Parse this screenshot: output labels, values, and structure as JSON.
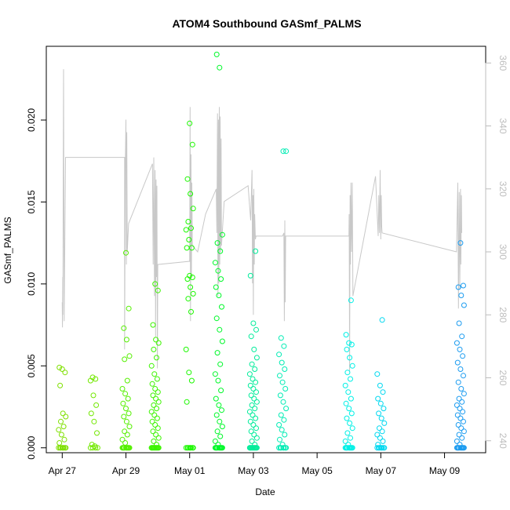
{
  "chart_data": {
    "type": "scatter",
    "title": "ATOM4 Southbound GASmf_PALMS",
    "xlabel": "Date",
    "ylabel": "GASmf_PALMS",
    "xlim": [
      "2018-04-26T12:00",
      "2018-05-10T07:00"
    ],
    "ylim": [
      -0.0003,
      0.0245
    ],
    "y2lim": [
      236.2,
      365.3
    ],
    "x_ticks": [
      {
        "date": "2018-04-27",
        "label": "Apr 27"
      },
      {
        "date": "2018-04-29",
        "label": "Apr 29"
      },
      {
        "date": "2018-05-01",
        "label": "May 01"
      },
      {
        "date": "2018-05-03",
        "label": "May 03"
      },
      {
        "date": "2018-05-05",
        "label": "May 05"
      },
      {
        "date": "2018-05-07",
        "label": "May 07"
      },
      {
        "date": "2018-05-09",
        "label": "May 09"
      }
    ],
    "y_ticks": [
      {
        "value": 0.0,
        "label": "0.000"
      },
      {
        "value": 0.005,
        "label": "0.005"
      },
      {
        "value": 0.01,
        "label": "0.010"
      },
      {
        "value": 0.015,
        "label": "0.015"
      },
      {
        "value": 0.02,
        "label": "0.020"
      }
    ],
    "y2_ticks": [
      {
        "value": 240,
        "label": "240"
      },
      {
        "value": 260,
        "label": "260"
      },
      {
        "value": 280,
        "label": "280"
      },
      {
        "value": 300,
        "label": "300"
      },
      {
        "value": 320,
        "label": "320"
      },
      {
        "value": 340,
        "label": "340"
      },
      {
        "value": 360,
        "label": "360"
      }
    ],
    "grid": false,
    "legend": "none",
    "colors": {
      "secondary_line": "#c8c8c8",
      "frame": "#000000",
      "right_axis": "#bdbdbd"
    },
    "flights": [
      {
        "center": "2018-04-27T00:00",
        "color": "#7fe000",
        "values": [
          0,
          0,
          0,
          0,
          0,
          0,
          0,
          0,
          0.0003,
          0.0005,
          0.0008,
          0.0011,
          0.0013,
          0.0016,
          0.0019,
          0.0021,
          0.0038,
          0.0046,
          0.0048,
          0.0049
        ]
      },
      {
        "center": "2018-04-28T00:00",
        "color": "#72e800",
        "values": [
          0,
          0,
          0,
          0,
          0.0001,
          0.0002,
          0.0009,
          0.0016,
          0.0021,
          0.0026,
          0.0032,
          0.0041,
          0.0042,
          0.0043
        ]
      },
      {
        "center": "2018-04-29T00:00",
        "color": "#55f000",
        "values": [
          0,
          0,
          0,
          0,
          0,
          0,
          0,
          0,
          0,
          0,
          0.0003,
          0.0005,
          0.0008,
          0.001,
          0.0013,
          0.0016,
          0.0019,
          0.0021,
          0.0024,
          0.0027,
          0.003,
          0.0033,
          0.0036,
          0.0041,
          0.0054,
          0.0056,
          0.0066,
          0.0073,
          0.0085,
          0.0119
        ]
      },
      {
        "center": "2018-04-29T22:00",
        "color": "#3cf400",
        "values": [
          0,
          0,
          0,
          0,
          0,
          0,
          0,
          0,
          0,
          0,
          0,
          0,
          0.0002,
          0.0004,
          0.0006,
          0.0008,
          0.001,
          0.0012,
          0.0014,
          0.0016,
          0.0018,
          0.002,
          0.0022,
          0.0024,
          0.0026,
          0.0028,
          0.003,
          0.0032,
          0.0034,
          0.0036,
          0.0039,
          0.0042,
          0.0045,
          0.005,
          0.0055,
          0.006,
          0.0064,
          0.0066,
          0.0075,
          0.0096,
          0.01
        ]
      },
      {
        "center": "2018-05-01T00:00",
        "color": "#1cf800",
        "values": [
          0,
          0,
          0,
          0,
          0,
          0,
          0,
          0,
          0.0028,
          0.0041,
          0.0046,
          0.006,
          0.0083,
          0.0091,
          0.0094,
          0.0098,
          0.0103,
          0.0104,
          0.0105,
          0.0122,
          0.0122,
          0.0127,
          0.0133,
          0.0134,
          0.0138,
          0.0146,
          0.0155,
          0.0164,
          0.0185,
          0.0198
        ]
      },
      {
        "center": "2018-05-01T22:00",
        "color": "#00f82a",
        "values": [
          0,
          0,
          0,
          0,
          0,
          0,
          0,
          0,
          0,
          0,
          0.0002,
          0.0004,
          0.0007,
          0.001,
          0.0013,
          0.0016,
          0.002,
          0.0023,
          0.0026,
          0.003,
          0.0035,
          0.0041,
          0.0045,
          0.0051,
          0.0058,
          0.0065,
          0.0072,
          0.0079,
          0.0086,
          0.0093,
          0.0098,
          0.0103,
          0.0108,
          0.0113,
          0.012,
          0.0125,
          0.013,
          0.0232,
          0.024
        ]
      },
      {
        "center": "2018-05-03T00:00",
        "color": "#00ec9a",
        "values": [
          0,
          0,
          0,
          0,
          0,
          0,
          0,
          0,
          0,
          0,
          0,
          0,
          0.0002,
          0.0004,
          0.0006,
          0.0008,
          0.001,
          0.0012,
          0.0014,
          0.0016,
          0.0018,
          0.002,
          0.0022,
          0.0024,
          0.0026,
          0.0028,
          0.003,
          0.0032,
          0.0034,
          0.0036,
          0.0038,
          0.004,
          0.0042,
          0.0045,
          0.0048,
          0.0051,
          0.0055,
          0.006,
          0.0068,
          0.0072,
          0.0076,
          0.0105,
          0.012
        ]
      },
      {
        "center": "2018-05-03T22:00",
        "color": "#00ecb4",
        "values": [
          0,
          0,
          0,
          0,
          0,
          0,
          0,
          0.0002,
          0.0005,
          0.0008,
          0.0011,
          0.0014,
          0.0017,
          0.002,
          0.0024,
          0.0028,
          0.0032,
          0.0036,
          0.004,
          0.0044,
          0.0048,
          0.0052,
          0.0057,
          0.0062,
          0.0067,
          0.0181,
          0.0181
        ]
      },
      {
        "center": "2018-05-06T00:00",
        "color": "#00f0e6",
        "values": [
          0,
          0,
          0,
          0,
          0,
          0,
          0,
          0,
          0,
          0,
          0.0002,
          0.0004,
          0.0006,
          0.0009,
          0.0012,
          0.0015,
          0.0018,
          0.0021,
          0.0024,
          0.0027,
          0.003,
          0.0034,
          0.0038,
          0.0042,
          0.0046,
          0.005,
          0.0055,
          0.006,
          0.0063,
          0.0064,
          0.0069,
          0.009
        ]
      },
      {
        "center": "2018-05-07T00:00",
        "color": "#00d8f0",
        "values": [
          0,
          0,
          0,
          0,
          0,
          0,
          0,
          0,
          0.0002,
          0.0004,
          0.0006,
          0.0008,
          0.001,
          0.0012,
          0.0015,
          0.0018,
          0.0021,
          0.0024,
          0.0027,
          0.003,
          0.0034,
          0.0038,
          0.0045,
          0.0078
        ]
      },
      {
        "center": "2018-05-09T12:00",
        "color": "#1c9cf0",
        "values": [
          0,
          0,
          0,
          0,
          0,
          0,
          0,
          0,
          0,
          0,
          0.0002,
          0.0004,
          0.0006,
          0.0008,
          0.001,
          0.0012,
          0.0014,
          0.0016,
          0.0018,
          0.002,
          0.0022,
          0.0024,
          0.0026,
          0.0028,
          0.003,
          0.0033,
          0.0036,
          0.004,
          0.0044,
          0.0048,
          0.0052,
          0.0056,
          0.006,
          0.0064,
          0.0068,
          0.0076,
          0.0087,
          0.0093,
          0.0098,
          0.0099,
          0.0125
        ]
      }
    ],
    "secondary_series": {
      "axis": "right",
      "points": [
        [
          "2018-04-27T00:00",
          284
        ],
        [
          "2018-04-27T00:10",
          276
        ],
        [
          "2018-04-27T00:20",
          292
        ],
        [
          "2018-04-27T00:30",
          280
        ],
        [
          "2018-04-27T01:00",
          358
        ],
        [
          "2018-04-27T01:30",
          278
        ],
        [
          "2018-04-27T02:30",
          330
        ],
        [
          "2018-04-28T23:00",
          330
        ],
        [
          "2018-04-28T23:00",
          269
        ],
        [
          "2018-04-28T23:30",
          328
        ],
        [
          "2018-04-29T00:00",
          342
        ],
        [
          "2018-04-29T00:20",
          296
        ],
        [
          "2018-04-29T00:40",
          338
        ],
        [
          "2018-04-29T01:00",
          300
        ],
        [
          "2018-04-29T02:00",
          309
        ],
        [
          "2018-04-29T20:00",
          328
        ],
        [
          "2018-04-29T20:30",
          296
        ],
        [
          "2018-04-29T21:00",
          330
        ],
        [
          "2018-04-29T21:30",
          286
        ],
        [
          "2018-04-29T22:00",
          326
        ],
        [
          "2018-04-29T22:20",
          273
        ],
        [
          "2018-04-29T22:40",
          323
        ],
        [
          "2018-04-29T23:00",
          292
        ],
        [
          "2018-04-29T23:20",
          321
        ],
        [
          "2018-04-29T23:40",
          263
        ],
        [
          "2018-04-29T23:59",
          296
        ],
        [
          "2018-05-01T00:00",
          297
        ],
        [
          "2018-05-01T00:20",
          346
        ],
        [
          "2018-05-01T00:40",
          278
        ],
        [
          "2018-05-01T01:00",
          331
        ],
        [
          "2018-05-01T01:20",
          292
        ],
        [
          "2018-05-01T01:40",
          322
        ],
        [
          "2018-05-01T02:00",
          302
        ],
        [
          "2018-05-01T06:00",
          300
        ],
        [
          "2018-05-01T12:00",
          312
        ],
        [
          "2018-05-01T16:00",
          316
        ],
        [
          "2018-05-01T20:00",
          320
        ],
        [
          "2018-05-01T20:30",
          306
        ],
        [
          "2018-05-01T21:00",
          344
        ],
        [
          "2018-05-01T21:20",
          286
        ],
        [
          "2018-05-01T21:40",
          342
        ],
        [
          "2018-05-01T22:00",
          290
        ],
        [
          "2018-05-01T22:20",
          346
        ],
        [
          "2018-05-01T22:40",
          296
        ],
        [
          "2018-05-01T23:00",
          343
        ],
        [
          "2018-05-01T23:20",
          300
        ],
        [
          "2018-05-01T23:40",
          336
        ],
        [
          "2018-05-02T00:00",
          302
        ],
        [
          "2018-05-02T02:00",
          316
        ],
        [
          "2018-05-02T20:00",
          321
        ],
        [
          "2018-05-02T22:00",
          310
        ],
        [
          "2018-05-02T23:00",
          326
        ],
        [
          "2018-05-02T23:20",
          290
        ],
        [
          "2018-05-02T23:40",
          318
        ],
        [
          "2018-05-03T00:00",
          280
        ],
        [
          "2018-05-03T00:20",
          320
        ],
        [
          "2018-05-03T00:40",
          296
        ],
        [
          "2018-05-03T01:00",
          312
        ],
        [
          "2018-05-03T01:30",
          304
        ],
        [
          "2018-05-03T02:00",
          305
        ],
        [
          "2018-05-03T22:00",
          305
        ],
        [
          "2018-05-03T23:00",
          306
        ],
        [
          "2018-05-03T23:20",
          278
        ],
        [
          "2018-05-03T23:40",
          310
        ],
        [
          "2018-05-04T00:00",
          284
        ],
        [
          "2018-05-04T00:20",
          305
        ],
        [
          "2018-05-06T00:00",
          305
        ],
        [
          "2018-05-06T00:10",
          312
        ],
        [
          "2018-05-06T00:30",
          262
        ],
        [
          "2018-05-06T00:50",
          318
        ],
        [
          "2018-05-06T01:10",
          296
        ],
        [
          "2018-05-06T01:30",
          322
        ],
        [
          "2018-05-06T02:00",
          300
        ],
        [
          "2018-05-06T02:30",
          322
        ],
        [
          "2018-05-06T03:00",
          286
        ],
        [
          "2018-05-06T12:00",
          306
        ],
        [
          "2018-05-06T20:00",
          324
        ],
        [
          "2018-05-06T22:00",
          305
        ],
        [
          "2018-05-06T22:30",
          318
        ],
        [
          "2018-05-06T23:00",
          306
        ],
        [
          "2018-05-06T23:30",
          326
        ],
        [
          "2018-05-07T00:00",
          304
        ],
        [
          "2018-05-07T00:20",
          318
        ],
        [
          "2018-05-07T00:40",
          308
        ],
        [
          "2018-05-07T01:00",
          306
        ],
        [
          "2018-05-09T09:00",
          300
        ],
        [
          "2018-05-09T10:00",
          322
        ],
        [
          "2018-05-09T10:30",
          282
        ],
        [
          "2018-05-09T11:00",
          319
        ],
        [
          "2018-05-09T11:30",
          288
        ],
        [
          "2018-05-09T12:00",
          320
        ],
        [
          "2018-05-09T12:20",
          296
        ],
        [
          "2018-05-09T12:40",
          318
        ],
        [
          "2018-05-09T13:00",
          306
        ]
      ]
    }
  }
}
